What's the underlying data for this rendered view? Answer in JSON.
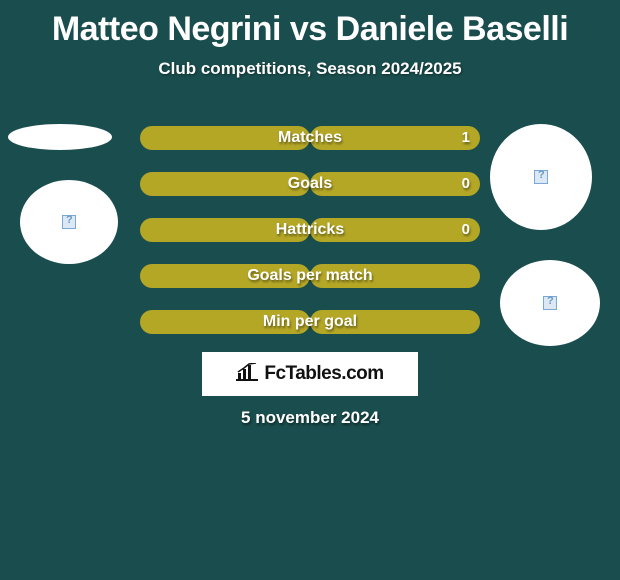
{
  "colors": {
    "background": "#1a4d4d",
    "bar_fill": "#b4a726",
    "text": "#ffffff",
    "banner_bg": "#ffffff",
    "banner_text": "#111111"
  },
  "title": "Matteo Negrini vs Daniele Baselli",
  "subtitle": "Club competitions, Season 2024/2025",
  "stats": [
    {
      "label": "Matches",
      "value_right": "1",
      "left_pct": 50,
      "right_pct": 50
    },
    {
      "label": "Goals",
      "value_right": "0",
      "left_pct": 50,
      "right_pct": 50
    },
    {
      "label": "Hattricks",
      "value_right": "0",
      "left_pct": 50,
      "right_pct": 50
    },
    {
      "label": "Goals per match",
      "value_right": "",
      "left_pct": 50,
      "right_pct": 50
    },
    {
      "label": "Min per goal",
      "value_right": "",
      "left_pct": 50,
      "right_pct": 50
    }
  ],
  "banner_text": "FcTables.com",
  "footer_date": "5 november 2024"
}
